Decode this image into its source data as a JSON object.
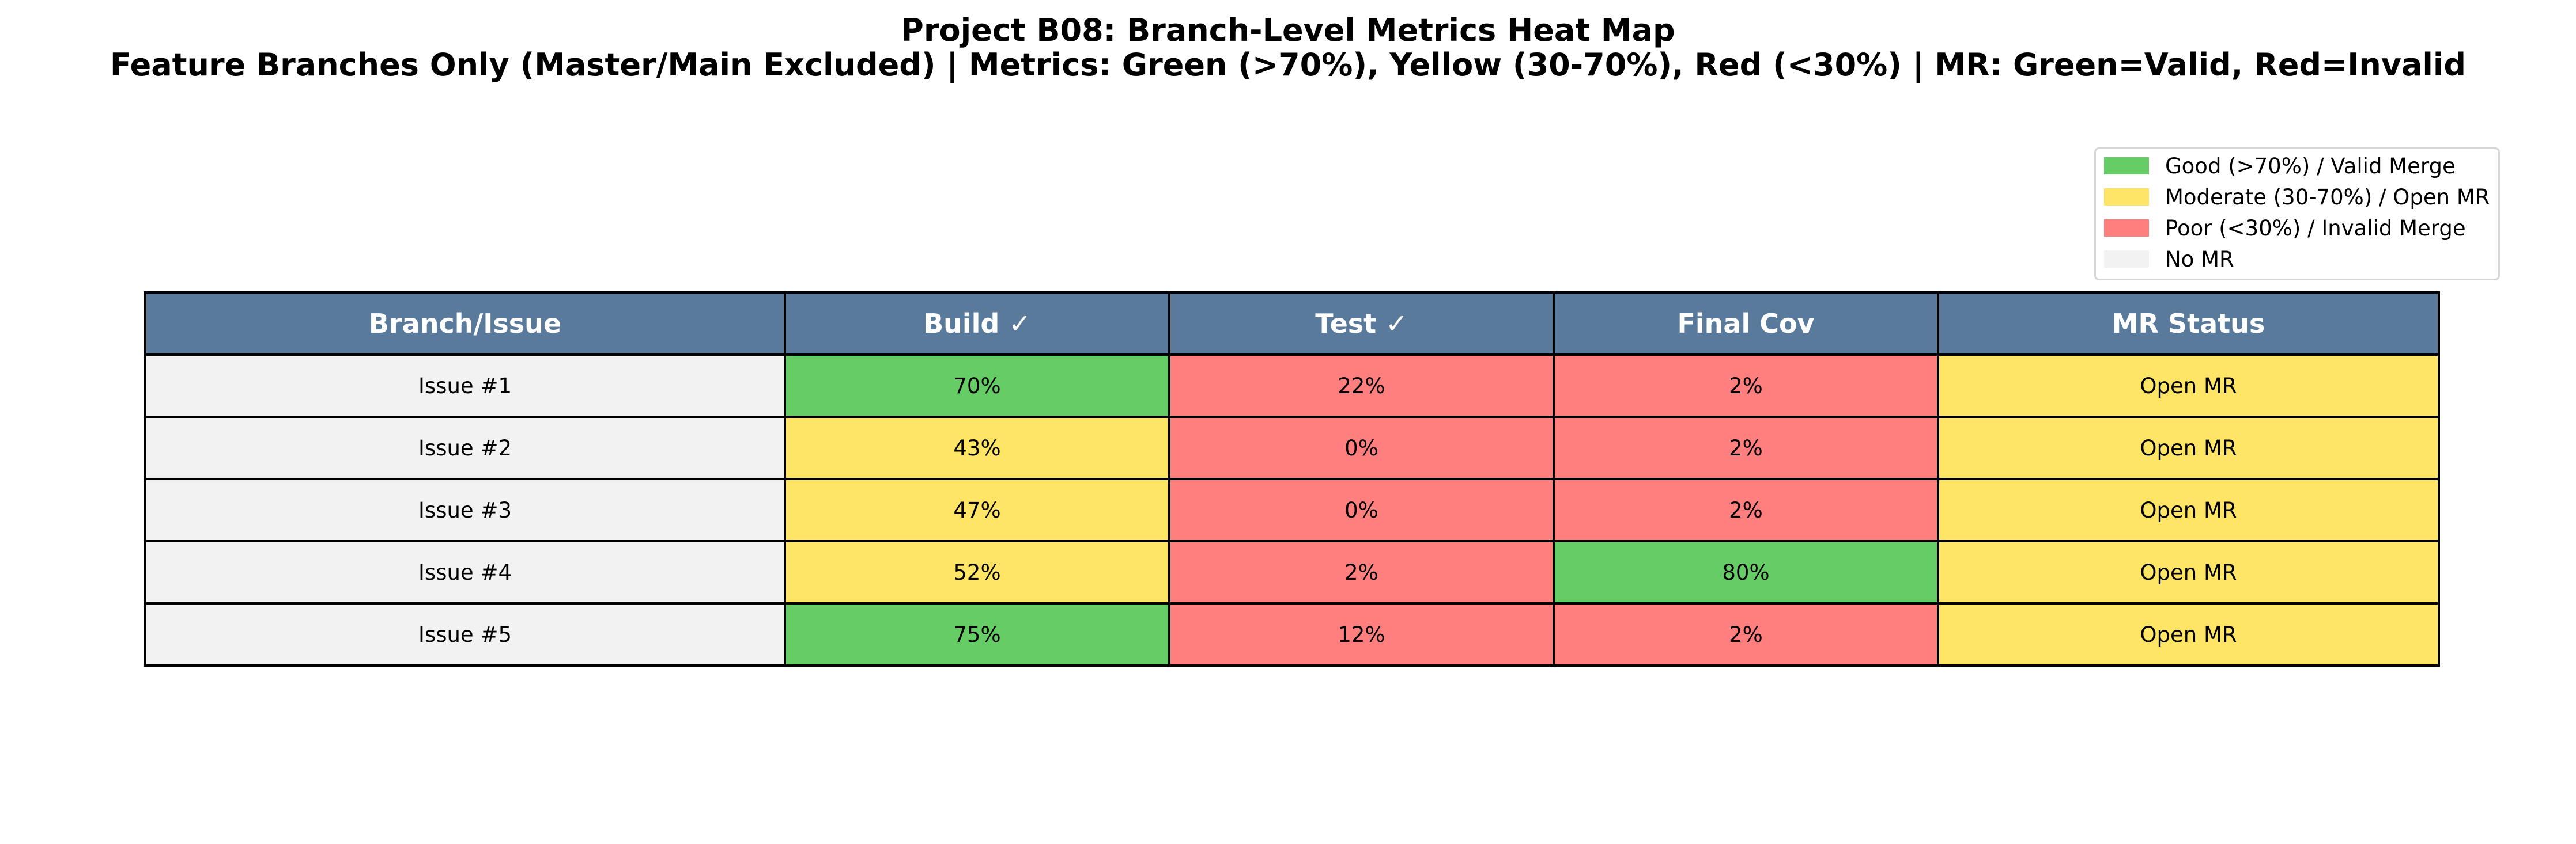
{
  "chart_data": {
    "type": "table",
    "title": "Project B08: Branch-Level Metrics Heat Map",
    "subtitle": "Feature Branches Only (Master/Main Excluded) | Metrics: Green (>70%), Yellow (30-70%), Red (<30%) | MR: Green=Valid, Red=Invalid",
    "columns": [
      "Branch/Issue",
      "Build ✓",
      "Test ✓",
      "Final Cov",
      "MR Status"
    ],
    "rows": [
      {
        "branch": "Issue #1",
        "build": "70%",
        "test": "22%",
        "final_cov": "2%",
        "mr_status": "Open MR",
        "colors": [
          "good",
          "poor",
          "poor",
          "moderate"
        ]
      },
      {
        "branch": "Issue #2",
        "build": "43%",
        "test": "0%",
        "final_cov": "2%",
        "mr_status": "Open MR",
        "colors": [
          "moderate",
          "poor",
          "poor",
          "moderate"
        ]
      },
      {
        "branch": "Issue #3",
        "build": "47%",
        "test": "0%",
        "final_cov": "2%",
        "mr_status": "Open MR",
        "colors": [
          "moderate",
          "poor",
          "poor",
          "moderate"
        ]
      },
      {
        "branch": "Issue #4",
        "build": "52%",
        "test": "2%",
        "final_cov": "80%",
        "mr_status": "Open MR",
        "colors": [
          "moderate",
          "poor",
          "good",
          "moderate"
        ]
      },
      {
        "branch": "Issue #5",
        "build": "75%",
        "test": "12%",
        "final_cov": "2%",
        "mr_status": "Open MR",
        "colors": [
          "good",
          "poor",
          "poor",
          "moderate"
        ]
      }
    ],
    "legend": {
      "placement": "top-right",
      "items": [
        {
          "label": "Good (>70%) / Valid Merge",
          "color": "#66cc66"
        },
        {
          "label": "Moderate (30-70%) / Open MR",
          "color": "#ffe566"
        },
        {
          "label": "Poor (<30%) / Invalid Merge",
          "color": "#ff7f7f"
        },
        {
          "label": "No MR",
          "color": "#f2f2f2"
        }
      ]
    },
    "colors": {
      "header": "#5a7a9c",
      "branch_cell": "#f2f2f2",
      "good": "#66cc66",
      "moderate": "#ffe566",
      "poor": "#ff7f7f",
      "none": "#f2f2f2"
    }
  }
}
